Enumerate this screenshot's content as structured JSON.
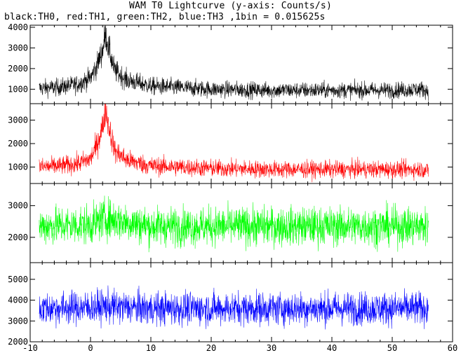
{
  "chart_data": {
    "type": "line",
    "title": "WAM T0 Lightcurve (y-axis: Counts/s)",
    "subtitle": "black:TH0, red:TH1, green:TH2, blue:TH3 ,1bin = 0.015625s",
    "x_range": [
      -10,
      60
    ],
    "x_ticks": [
      "-10",
      "0",
      "10",
      "20",
      "30",
      "40",
      "50",
      "60"
    ],
    "data_x_range": [
      -8.5,
      56
    ],
    "bin_seconds": 0.015625,
    "panels": [
      {
        "series_name": "TH0",
        "color": "#000000",
        "ylim": [
          300,
          4100
        ],
        "y_ticks": [
          "1000",
          "2000",
          "3000",
          "4000"
        ],
        "baseline": 950,
        "noise_amp": 420,
        "peak_time": 2.5,
        "peak_value": 3700,
        "x": [
          -8.5,
          -5,
          -2,
          0,
          1,
          2,
          2.5,
          3,
          4,
          6,
          10,
          20,
          30,
          40,
          50,
          55,
          56
        ],
        "values": [
          1050,
          1100,
          1250,
          1550,
          2100,
          2900,
          3700,
          3000,
          1900,
          1450,
          1150,
          1000,
          950,
          950,
          950,
          1000,
          900
        ]
      },
      {
        "series_name": "TH1",
        "color": "#ff0000",
        "ylim": [
          300,
          3700
        ],
        "y_ticks": [
          "1000",
          "2000",
          "3000"
        ],
        "baseline": 850,
        "noise_amp": 380,
        "peak_time": 2.5,
        "peak_value": 3500,
        "x": [
          -8.5,
          -5,
          -2,
          0,
          1,
          2,
          2.5,
          3,
          4,
          6,
          10,
          20,
          30,
          40,
          50,
          55,
          56
        ],
        "values": [
          1000,
          1050,
          1150,
          1350,
          1900,
          2700,
          3500,
          2800,
          1700,
          1300,
          1050,
          950,
          900,
          900,
          900,
          900,
          850
        ]
      },
      {
        "series_name": "TH2",
        "color": "#00ff00",
        "ylim": [
          1200,
          3700
        ],
        "y_ticks": [
          "2000",
          "3000"
        ],
        "baseline": 2350,
        "noise_amp": 650,
        "peak_time": 2.5,
        "peak_value": 2700,
        "x": [
          -8.5,
          0,
          2.5,
          10,
          20,
          30,
          40,
          50,
          56
        ],
        "values": [
          2350,
          2400,
          2600,
          2350,
          2350,
          2350,
          2350,
          2350,
          2350
        ]
      },
      {
        "series_name": "TH3",
        "color": "#0000ff",
        "ylim": [
          2000,
          5800
        ],
        "y_ticks": [
          "2000",
          "3000",
          "4000",
          "5000"
        ],
        "baseline": 3600,
        "noise_amp": 850,
        "peak_time": 2.5,
        "peak_value": 3700,
        "x": [
          -8.5,
          0,
          2.5,
          10,
          20,
          30,
          40,
          50,
          56
        ],
        "values": [
          3600,
          3650,
          3700,
          3600,
          3600,
          3600,
          3600,
          3600,
          3600
        ]
      }
    ]
  }
}
